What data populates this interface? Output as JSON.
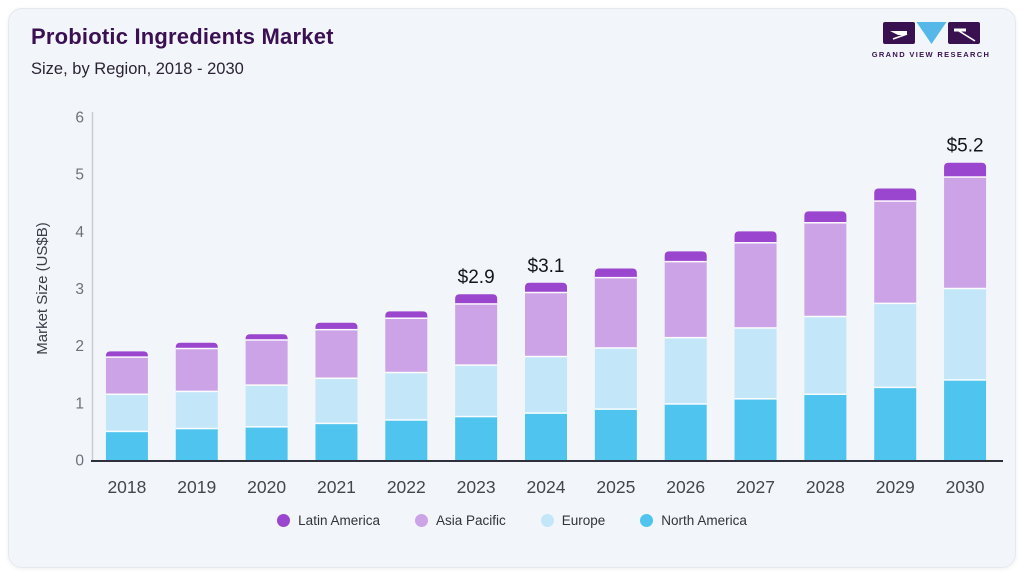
{
  "header": {
    "title": "Probiotic Ingredients Market",
    "subtitle": "Size, by Region, 2018 - 2030"
  },
  "logo": {
    "name": "Grand View Research logo",
    "text": "GRAND VIEW RESEARCH",
    "mark_color": "#3a1150",
    "accent_color": "#55b8e9"
  },
  "chart_data": {
    "type": "bar",
    "stacked": true,
    "title": "Probiotic Ingredients Market Size, by Region, 2018 - 2030",
    "categories": [
      "2018",
      "2019",
      "2020",
      "2021",
      "2022",
      "2023",
      "2024",
      "2025",
      "2026",
      "2027",
      "2028",
      "2029",
      "2030"
    ],
    "series": [
      {
        "name": "North America",
        "color": "#4fc4ee",
        "values": [
          0.5,
          0.55,
          0.58,
          0.64,
          0.7,
          0.76,
          0.82,
          0.89,
          0.98,
          1.07,
          1.15,
          1.27,
          1.4
        ]
      },
      {
        "name": "Europe",
        "color": "#c3e6f8",
        "values": [
          0.65,
          0.65,
          0.73,
          0.79,
          0.83,
          0.9,
          0.99,
          1.07,
          1.16,
          1.24,
          1.36,
          1.47,
          1.6
        ]
      },
      {
        "name": "Asia Pacific",
        "color": "#cda3e8",
        "values": [
          0.65,
          0.75,
          0.79,
          0.85,
          0.95,
          1.07,
          1.12,
          1.23,
          1.33,
          1.49,
          1.64,
          1.79,
          1.95
        ]
      },
      {
        "name": "Latin America",
        "color": "#9a46ce",
        "values": [
          0.1,
          0.1,
          0.1,
          0.12,
          0.12,
          0.17,
          0.17,
          0.16,
          0.18,
          0.2,
          0.2,
          0.22,
          0.25
        ]
      }
    ],
    "totals": [
      1.9,
      2.05,
      2.2,
      2.4,
      2.6,
      2.9,
      3.1,
      3.35,
      3.65,
      4.0,
      4.35,
      4.75,
      5.2
    ],
    "annotations": [
      {
        "category": "2023",
        "label": "$2.9"
      },
      {
        "category": "2024",
        "label": "$3.1"
      },
      {
        "category": "2030",
        "label": "$5.2"
      }
    ],
    "xlabel": "",
    "ylabel": "Market Size (US$B)",
    "ylim": [
      0,
      6
    ],
    "yticks": [
      0,
      1,
      2,
      3,
      4,
      5,
      6
    ],
    "grid": false,
    "legend_position": "bottom",
    "legend_order": [
      "Latin America",
      "Asia Pacific",
      "Europe",
      "North America"
    ]
  }
}
